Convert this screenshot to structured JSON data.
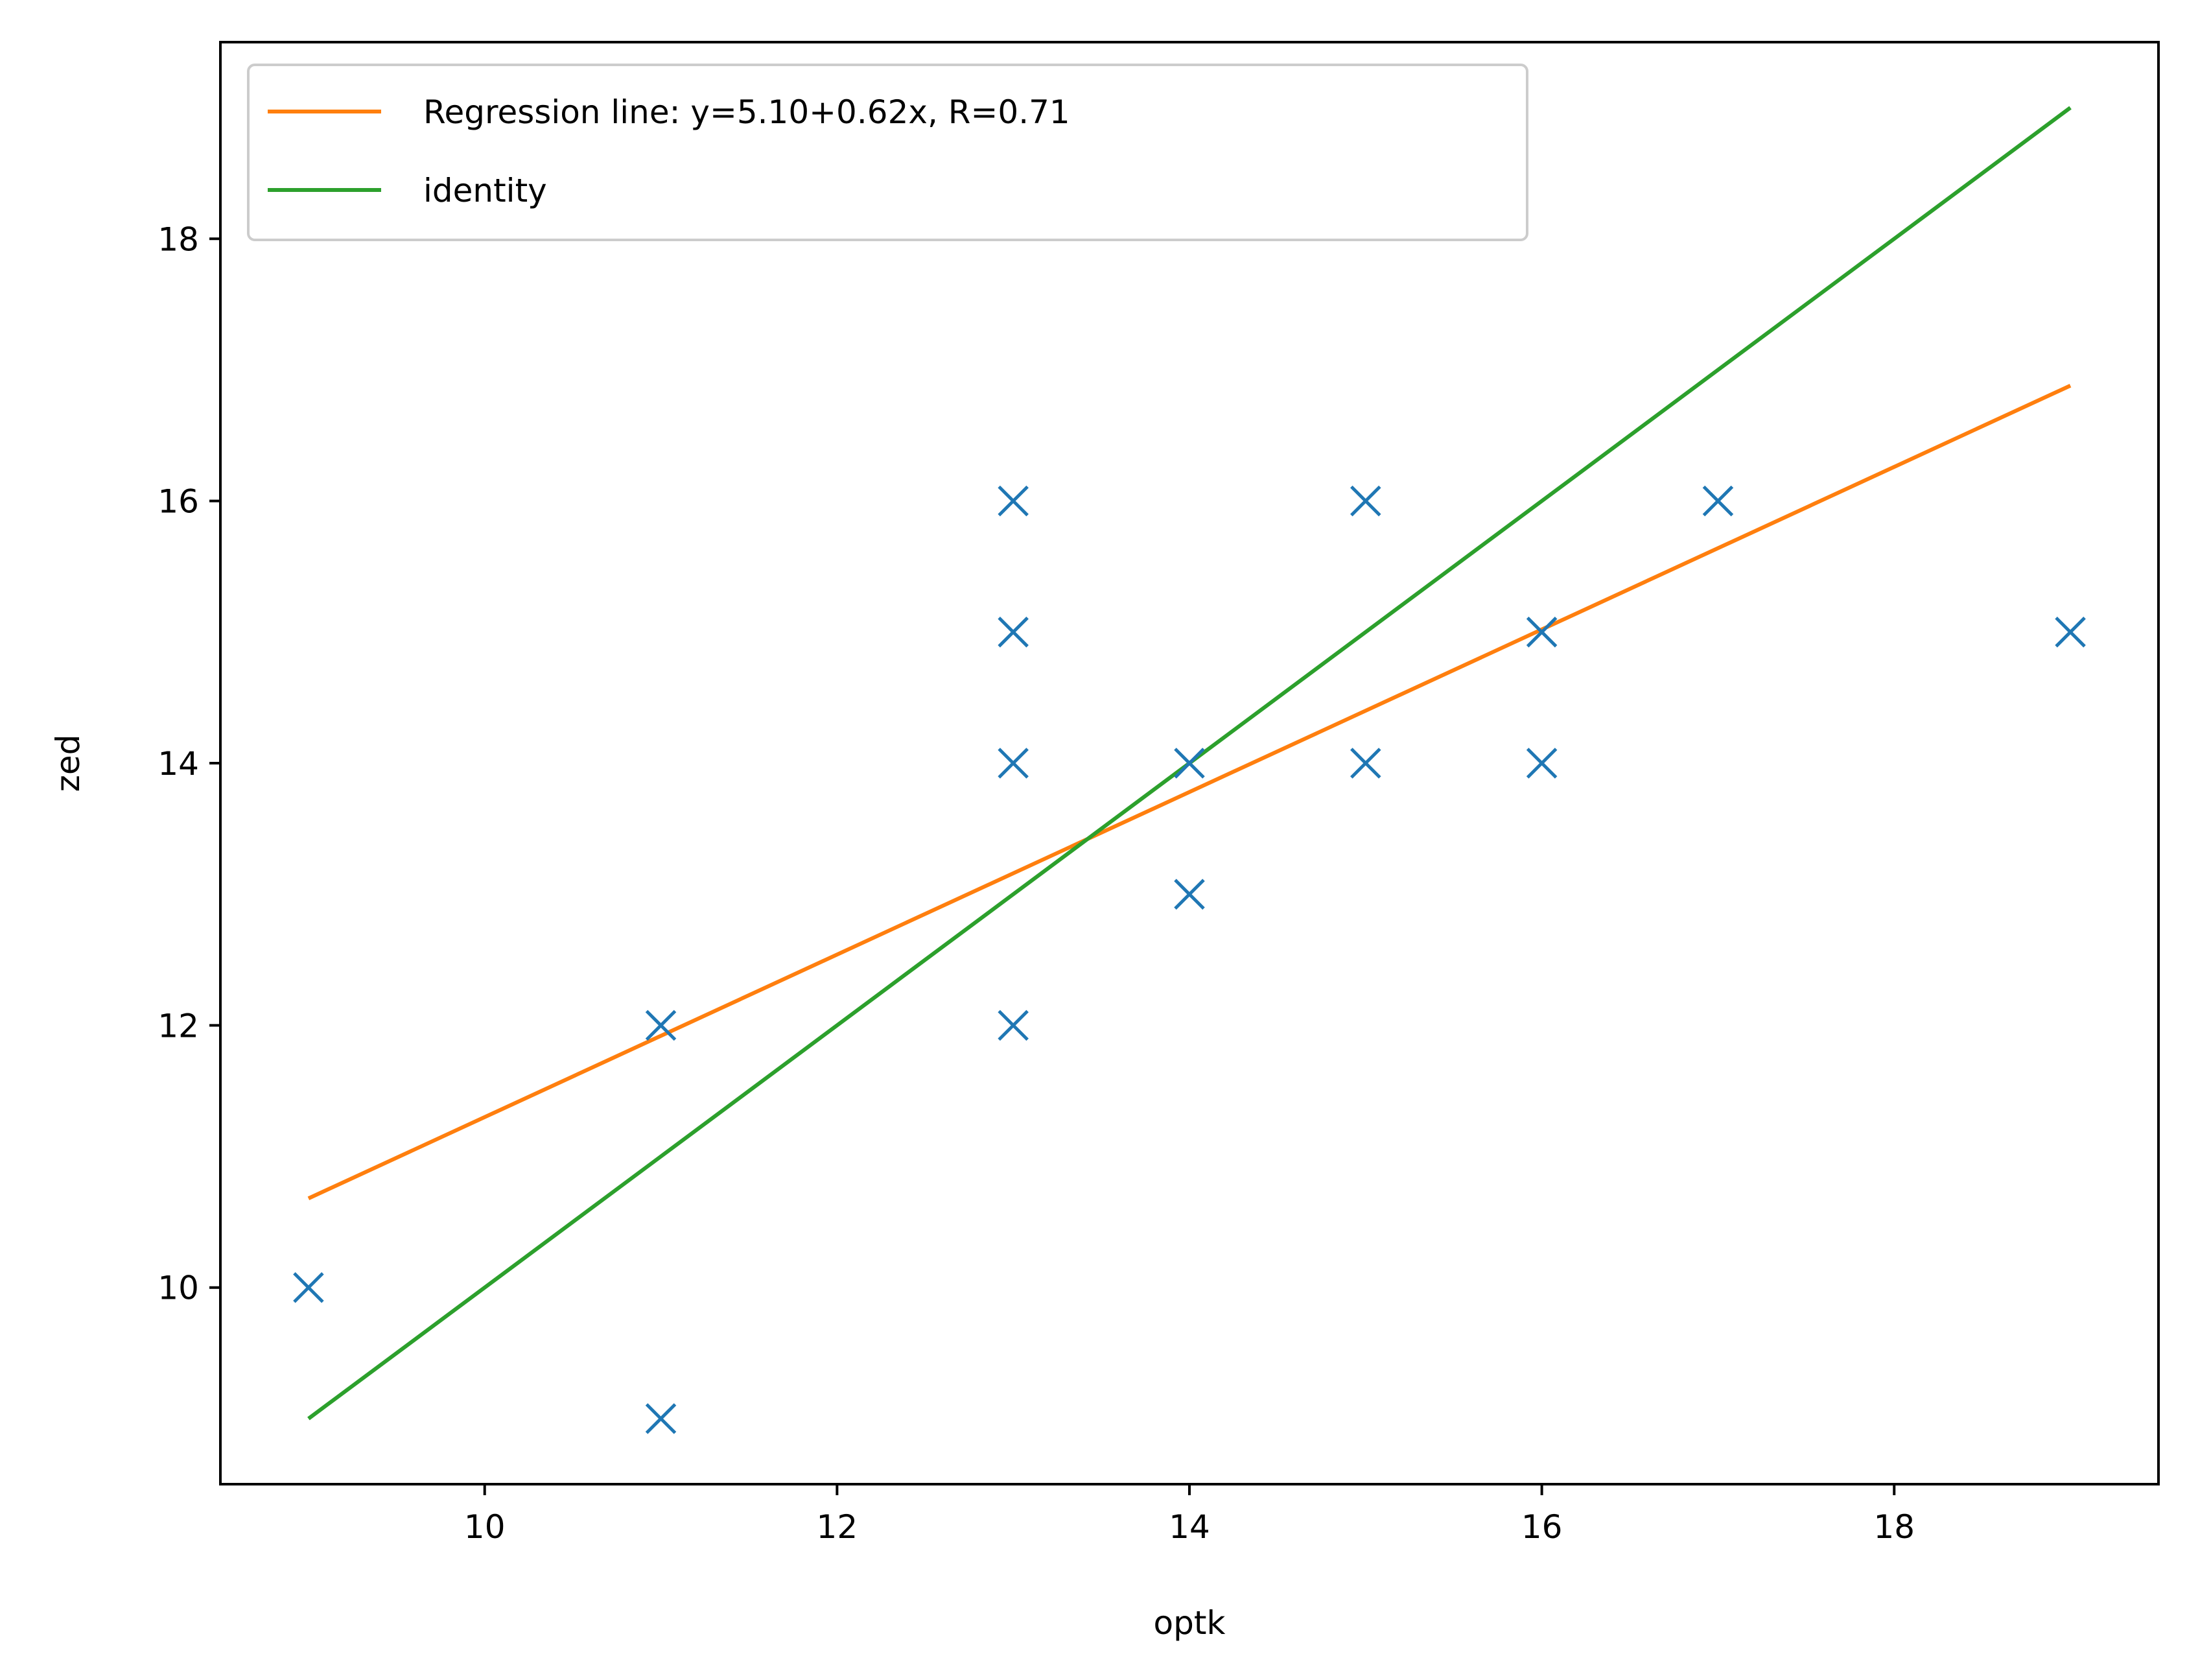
{
  "chart_data": {
    "type": "scatter",
    "xlabel": "optk",
    "ylabel": "zed",
    "xlim": [
      8.5,
      19.5
    ],
    "ylim": [
      8.5,
      19.5
    ],
    "xticks": [
      10,
      12,
      14,
      16,
      18
    ],
    "yticks": [
      10,
      12,
      14,
      16,
      18
    ],
    "grid": false,
    "legend_position": "upper-left",
    "points": {
      "marker": "x",
      "color": "#1f77b4",
      "data": [
        [
          9,
          10
        ],
        [
          11,
          12
        ],
        [
          11,
          9
        ],
        [
          13,
          16
        ],
        [
          13,
          15
        ],
        [
          13,
          14
        ],
        [
          13,
          12
        ],
        [
          14,
          14
        ],
        [
          14,
          13
        ],
        [
          15,
          16
        ],
        [
          15,
          14
        ],
        [
          16,
          15
        ],
        [
          16,
          14
        ],
        [
          17,
          16
        ],
        [
          19,
          15
        ]
      ]
    },
    "series": [
      {
        "name": "Regression line: y=5.10+0.62x, R=0.71",
        "color": "#ff7f0e",
        "x": [
          9,
          19
        ],
        "y": [
          10.68,
          16.88
        ]
      },
      {
        "name": "identity",
        "color": "#2ca02c",
        "x": [
          9,
          19
        ],
        "y": [
          9,
          19
        ]
      }
    ]
  }
}
